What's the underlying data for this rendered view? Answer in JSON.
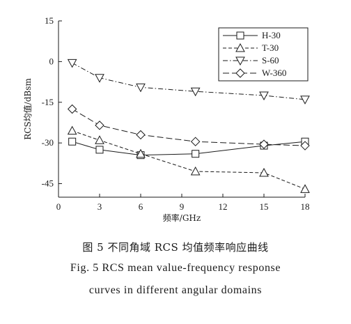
{
  "chart_data": {
    "type": "line",
    "xlabel": "频率/GHz",
    "ylabel": "RCS均值/dBsm",
    "xlim": [
      0,
      18
    ],
    "ylim": [
      -50,
      15
    ],
    "xticks": [
      0,
      3,
      6,
      9,
      12,
      15,
      18
    ],
    "yticks": [
      15,
      0,
      -15,
      -30,
      -45
    ],
    "x": [
      1,
      3,
      6,
      10,
      15,
      18
    ],
    "legend_position": "top-right",
    "grid": false,
    "series": [
      {
        "name": "H-30",
        "marker": "square",
        "dash": "solid",
        "values": [
          -29.5,
          -32.5,
          -34.5,
          -34.0,
          -31.0,
          -29.5
        ]
      },
      {
        "name": "T-30",
        "marker": "triangle-up",
        "dash": "dashed",
        "values": [
          -25.5,
          -29.0,
          -34.0,
          -40.5,
          -41.0,
          -47.0
        ]
      },
      {
        "name": "S-60",
        "marker": "triangle-down",
        "dash": "dash-dot",
        "values": [
          -0.5,
          -6.0,
          -9.5,
          -11.0,
          -12.5,
          -14.0
        ]
      },
      {
        "name": "W-360",
        "marker": "diamond",
        "dash": "long-dash",
        "values": [
          -17.5,
          -23.5,
          -27.0,
          -29.5,
          -30.5,
          -31.0
        ]
      }
    ]
  },
  "captions": {
    "chinese": "图 5   不同角域 RCS 均值频率响应曲线",
    "english_line1": "Fig. 5   RCS mean value-frequency response",
    "english_line2": "curves in different angular domains"
  }
}
